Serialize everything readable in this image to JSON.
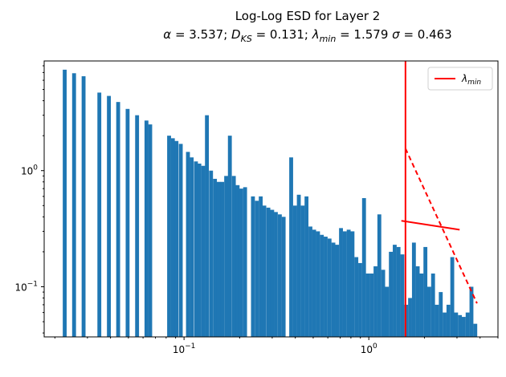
{
  "chart_data": {
    "type": "bar",
    "title": "Log-Log ESD for Layer 2",
    "subtitle": "α = 3.537; D_KS = 0.131; λ_min = 1.579 σ = 0.463",
    "xlabel": "",
    "ylabel": "",
    "xscale": "log",
    "yscale": "log",
    "xlim": [
      0.0175,
      5.0
    ],
    "ylim": [
      0.037,
      8.8
    ],
    "grid": false,
    "legend": {
      "placement": "top-right",
      "entries": [
        "λ_min"
      ]
    },
    "x_tick_labels": [
      {
        "value": 0.1,
        "base": "10",
        "exp": "−1"
      },
      {
        "value": 1,
        "base": "10",
        "exp": "0"
      }
    ],
    "y_tick_labels": [
      {
        "value": 0.1,
        "base": "10",
        "exp": "−1"
      },
      {
        "value": 1,
        "base": "10",
        "exp": "0"
      }
    ],
    "series": [
      {
        "type": "histogram",
        "color": "#1f77b4",
        "bars": [
          [
            0.0226,
            7.4
          ],
          [
            0.0245,
            0
          ],
          [
            0.0254,
            6.9
          ],
          [
            0.0265,
            0
          ],
          [
            0.0286,
            6.5
          ],
          [
            0.0298,
            0
          ],
          [
            0.0336,
            0
          ],
          [
            0.0348,
            4.7
          ],
          [
            0.0364,
            0
          ],
          [
            0.0392,
            4.4
          ],
          [
            0.041,
            0
          ],
          [
            0.044,
            3.9
          ],
          [
            0.0462,
            0
          ],
          [
            0.0495,
            3.4
          ],
          [
            0.0519,
            0
          ],
          [
            0.0557,
            3.0
          ],
          [
            0.0584,
            0
          ],
          [
            0.0626,
            2.7
          ],
          [
            0.0656,
            2.5
          ],
          [
            0.0704,
            0
          ],
          [
            0.0738,
            0
          ],
          [
            0.0792,
            0
          ],
          [
            0.083,
            2.0
          ],
          [
            0.087,
            1.9
          ],
          [
            0.091,
            1.8
          ],
          [
            0.096,
            1.7
          ],
          [
            0.101,
            0
          ],
          [
            0.105,
            1.45
          ],
          [
            0.11,
            1.3
          ],
          [
            0.116,
            1.2
          ],
          [
            0.121,
            1.15
          ],
          [
            0.127,
            1.1
          ],
          [
            0.133,
            3.0
          ],
          [
            0.14,
            1.0
          ],
          [
            0.147,
            0.85
          ],
          [
            0.154,
            0.8
          ],
          [
            0.161,
            0.8
          ],
          [
            0.169,
            0.9
          ],
          [
            0.177,
            2.0
          ],
          [
            0.186,
            0.9
          ],
          [
            0.195,
            0.75
          ],
          [
            0.204,
            0.7
          ],
          [
            0.214,
            0.72
          ],
          [
            0.225,
            0
          ],
          [
            0.236,
            0.6
          ],
          [
            0.248,
            0.55
          ],
          [
            0.26,
            0.6
          ],
          [
            0.272,
            0.5
          ],
          [
            0.286,
            0.48
          ],
          [
            0.3,
            0.46
          ],
          [
            0.314,
            0.44
          ],
          [
            0.33,
            0.42
          ],
          [
            0.346,
            0.4
          ],
          [
            0.363,
            0
          ],
          [
            0.38,
            1.3
          ],
          [
            0.399,
            0.5
          ],
          [
            0.418,
            0.62
          ],
          [
            0.439,
            0.5
          ],
          [
            0.46,
            0.6
          ],
          [
            0.483,
            0.33
          ],
          [
            0.506,
            0.31
          ],
          [
            0.531,
            0.3
          ],
          [
            0.557,
            0.28
          ],
          [
            0.584,
            0.27
          ],
          [
            0.613,
            0.26
          ],
          [
            0.643,
            0.24
          ],
          [
            0.674,
            0.23
          ],
          [
            0.707,
            0.32
          ],
          [
            0.742,
            0.3
          ],
          [
            0.778,
            0.31
          ],
          [
            0.816,
            0.3
          ],
          [
            0.856,
            0.18
          ],
          [
            0.898,
            0.16
          ],
          [
            0.942,
            0.58
          ],
          [
            0.988,
            0.13
          ],
          [
            1.036,
            0.13
          ],
          [
            1.087,
            0.15
          ],
          [
            1.14,
            0.42
          ],
          [
            1.196,
            0.14
          ],
          [
            1.255,
            0.1
          ],
          [
            1.316,
            0.2
          ],
          [
            1.381,
            0.23
          ],
          [
            1.448,
            0.22
          ],
          [
            1.519,
            0.19
          ],
          [
            1.594,
            0.07
          ],
          [
            1.672,
            0.08
          ],
          [
            1.754,
            0.24
          ],
          [
            1.839,
            0.15
          ],
          [
            1.93,
            0.13
          ],
          [
            2.024,
            0.22
          ],
          [
            2.123,
            0.1
          ],
          [
            2.227,
            0.13
          ],
          [
            2.336,
            0.07
          ],
          [
            2.451,
            0.09
          ],
          [
            2.571,
            0.06
          ],
          [
            2.697,
            0.07
          ],
          [
            2.829,
            0.18
          ],
          [
            2.967,
            0.06
          ],
          [
            3.113,
            0.057
          ],
          [
            3.265,
            0.055
          ],
          [
            3.425,
            0.06
          ],
          [
            3.593,
            0.1
          ],
          [
            3.769,
            0.048
          ]
        ]
      },
      {
        "name": "λ_min",
        "type": "vline",
        "x": 1.579,
        "color": "#ff0000"
      },
      {
        "type": "fit-solid",
        "color": "#ff0000",
        "points": [
          [
            1.5,
            0.37
          ],
          [
            3.1,
            0.31
          ]
        ]
      },
      {
        "type": "fit-dashed",
        "color": "#ff0000",
        "points": [
          [
            1.579,
            1.55
          ],
          [
            3.85,
            0.072
          ]
        ]
      }
    ]
  }
}
